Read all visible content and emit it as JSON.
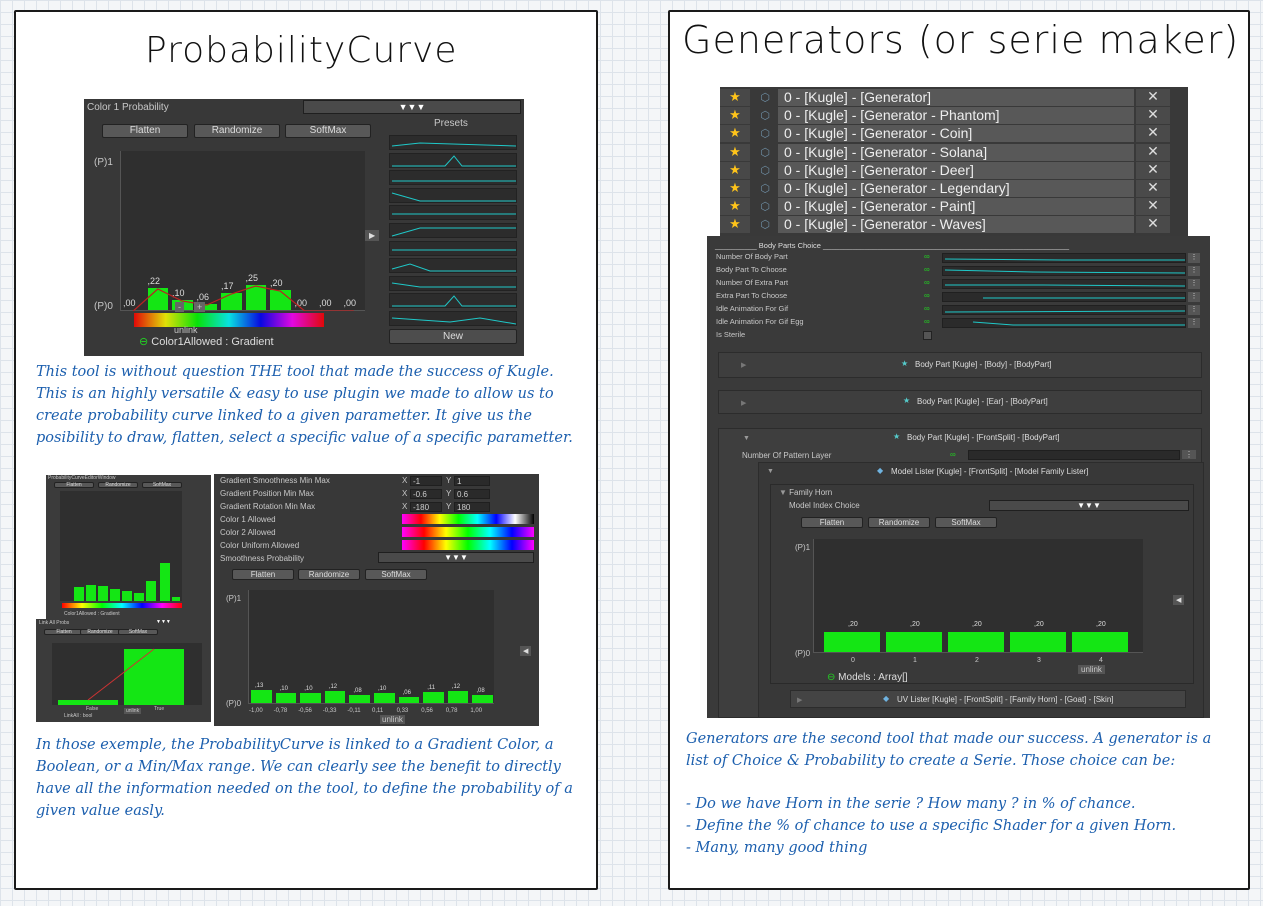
{
  "left": {
    "title": "ProbabilityCurve",
    "probability_panel": {
      "header_label": "Color 1 Probability",
      "header_dropdown": "▼▼▼",
      "buttons": [
        "Flatten",
        "Randomize",
        "SoftMax"
      ],
      "axis_top": "(P)1",
      "axis_bottom": "(P)0",
      "presets_label": "Presets",
      "new_label": "New",
      "unlink_label": "unlink",
      "minus_label": "-",
      "plus_label": "+",
      "bottom_label": "Color1Allowed : Gradient",
      "bar_values": [
        0.0,
        0.22,
        0.1,
        0.06,
        0.17,
        0.25,
        0.2,
        0.0,
        0.0,
        0.0
      ],
      "bar_labels": [
        ",00",
        ",22",
        ",10",
        ",06",
        ",17",
        ",25",
        ",20",
        ",00",
        ",00",
        ",00"
      ]
    },
    "paragraph1": "This tool is without question THE tool that made the success of Kugle. This is an highly versatile & easy to use plugin we made to allow us to create probability curve linked to a given parametter. It give us the posibility to draw, flatten, select a specific value of a specific parametter.",
    "mini_panel": {
      "title": "ProbabilityCurveEditorWindow",
      "buttons": [
        "Flatten",
        "Randomize",
        "SoftMax"
      ],
      "bottom_label": "Color1Allowed : Gradient"
    },
    "bool_panel": {
      "header_label": "Link All Probs",
      "buttons": [
        "Flatten",
        "Randomize",
        "SoftMax"
      ],
      "unlink_label": "unlink",
      "cat_labels": [
        "False",
        "True"
      ],
      "bottom_label": "LinkAll : bool"
    },
    "range_panel": {
      "rows": [
        {
          "label": "Gradient Smoothness Min Max",
          "x": "-1",
          "y": "1"
        },
        {
          "label": "Gradient Position Min Max",
          "x": "-0.6",
          "y": "0.6"
        },
        {
          "label": "Gradient Rotation Min Max",
          "x": "-180",
          "y": "180"
        }
      ],
      "gradient_rows": [
        "Color 1 Allowed",
        "Color 2 Allowed",
        "Color Uniform Allowed"
      ],
      "smoothness_label": "Smoothness Probability",
      "dropdown": "▼▼▼",
      "x_prefix": "X",
      "y_prefix": "Y",
      "buttons": [
        "Flatten",
        "Randomize",
        "SoftMax"
      ],
      "axis_top": "(P)1",
      "axis_bottom": "(P)0",
      "unlink_label": "unlink",
      "bar_values": [
        0.13,
        0.1,
        0.1,
        0.12,
        0.08,
        0.1,
        0.06,
        0.11,
        0.12,
        0.08
      ],
      "bar_labels": [
        ",13",
        ",10",
        ",10",
        ",12",
        ",08",
        ",10",
        ",06",
        ",11",
        ",12",
        ",08"
      ],
      "x_ticks": [
        "-1,00",
        "-0,78",
        "-0,56",
        "-0,33",
        "-0,11",
        "0,11",
        "0,33",
        "0,56",
        "0,78",
        "1,00"
      ]
    },
    "paragraph2": "In those exemple, the ProbabilityCurve is linked to a Gradient Color, a Boolean, or a Min/Max range. We can clearly see the benefit to directly have all the information needed on the tool, to define the probability of a given value easly."
  },
  "right": {
    "title": "Generators (or serie maker)",
    "generators": [
      "0 - [Kugle] - [Generator]",
      "0 - [Kugle] - [Generator - Phantom]",
      "0 - [Kugle] - [Generator - Coin]",
      "0 - [Kugle] - [Generator - Solana]",
      "0 - [Kugle] - [Generator - Deer]",
      "0 - [Kugle] - [Generator - Legendary]",
      "0 - [Kugle] - [Generator - Paint]",
      "0 - [Kugle] - [Generator - Waves]"
    ],
    "close_glyph": "✕",
    "star_glyph": "★",
    "body_parts": {
      "header": "Body Parts Choice",
      "rows": [
        "Number Of Body Part",
        "Body Part To Choose",
        "Number Of Extra Part",
        "Extra Part To Choose",
        "Idle Animation For Gif",
        "Idle Animation For Gif Egg"
      ],
      "sterile_label": "Is Sterile",
      "link_glyph": "∞",
      "dots": "⋮"
    },
    "foldouts": [
      "Body Part [Kugle] - [Body] - [BodyPart]",
      "Body Part [Kugle] - [Ear] - [BodyPart]",
      "Body Part [Kugle] - [FrontSplit] - [BodyPart]"
    ],
    "pattern_label": "Number Of Pattern Layer",
    "model_lister": "Model Lister [Kugle] - [FrontSplit] - [Model Family Lister]",
    "family_label": "Family Horn",
    "model_index": "Model Index Choice",
    "dropdown": "▼▼▼",
    "buttons": [
      "Flatten",
      "Randomize",
      "SoftMax"
    ],
    "axis_top": "(P)1",
    "axis_bottom": "(P)0",
    "bar_values": [
      0.2,
      0.2,
      0.2,
      0.2,
      0.2
    ],
    "bar_labels": [
      ",20",
      ",20",
      ",20",
      ",20",
      ",20"
    ],
    "x_ticks": [
      "0",
      "1",
      "2",
      "3",
      "4"
    ],
    "unlink_label": "unlink",
    "bottom_label": "Models : Array[]",
    "uv_lister": "UV Lister [Kugle] - [FrontSplit] - [Family Horn] - [Goat] - [Skin]",
    "paragraph": "Generators are the second tool that made our success. A generator is a list of Choice & Probability to create a Serie. Those choice can be:",
    "bullets": [
      "- Do we have Horn in the serie ? How many ? in % of chance.",
      "- Define the % of chance to use a specific Shader for a given Horn.",
      "- Many, many good thing"
    ]
  },
  "colors": {
    "bar_green": "#14e614",
    "text_blue": "#1c5fae",
    "unity_bg": "#383838",
    "star": "#ffc41a"
  }
}
